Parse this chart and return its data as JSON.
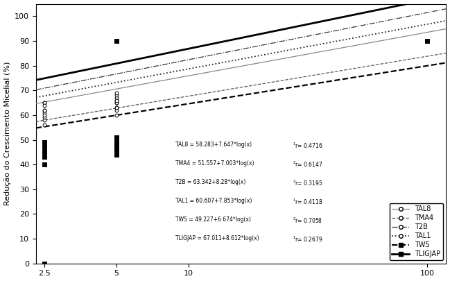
{
  "title": "",
  "ylabel": "Redução do Crescimento Micelial (%)",
  "xlabel": "",
  "xscale": "log",
  "xlim": [
    2.3,
    120
  ],
  "ylim": [
    0,
    105
  ],
  "yticks": [
    0,
    10,
    20,
    30,
    40,
    50,
    60,
    70,
    80,
    90,
    100
  ],
  "xticks": [
    2.5,
    5,
    10,
    100
  ],
  "xtick_labels": [
    "2.5",
    "5",
    "10",
    "100"
  ],
  "names": [
    "TAL8",
    "TMA4",
    "T2B",
    "TAL1",
    "TW5",
    "TLIGJAP"
  ],
  "params": [
    [
      58.283,
      7.647
    ],
    [
      51.557,
      7.003
    ],
    [
      63.342,
      8.28
    ],
    [
      60.607,
      7.853
    ],
    [
      49.227,
      6.674
    ],
    [
      67.011,
      8.612
    ]
  ],
  "curve_styles": [
    {
      "ls": "-",
      "lw": 0.9,
      "color": "#888888"
    },
    {
      "ls": "--",
      "lw": 0.9,
      "color": "#555555"
    },
    {
      "ls": "-.",
      "lw": 0.9,
      "color": "#333333"
    },
    {
      "ls": ":",
      "lw": 1.3,
      "color": "#222222"
    },
    {
      "ls": "--",
      "lw": 1.6,
      "color": "#000000"
    },
    {
      "ls": "-",
      "lw": 2.0,
      "color": "#000000"
    }
  ],
  "scatter": {
    "TAL8": {
      "x": [
        2.5,
        2.5,
        2.5,
        5,
        5,
        5
      ],
      "y": [
        58,
        61,
        65,
        62,
        65,
        67
      ],
      "marker": "o",
      "fc": "white",
      "ec": "black",
      "s": 12
    },
    "TMA4": {
      "x": [
        2.5,
        2.5,
        2.5,
        5,
        5,
        5
      ],
      "y": [
        56,
        59,
        62,
        60,
        63,
        66
      ],
      "marker": "o",
      "fc": "white",
      "ec": "black",
      "s": 12
    },
    "T2B": {
      "x": [
        2.5,
        2.5,
        5,
        5
      ],
      "y": [
        62,
        65,
        65,
        68
      ],
      "marker": "o",
      "fc": "white",
      "ec": "black",
      "s": 12
    },
    "TAL1": {
      "x": [
        2.5,
        2.5,
        5,
        5,
        5
      ],
      "y": [
        60,
        64,
        63,
        66,
        69
      ],
      "marker": "o",
      "fc": "white",
      "ec": "black",
      "s": 12
    },
    "TW5": {
      "x": [
        2.5,
        2.5,
        2.5,
        2.5,
        2.5,
        5,
        5,
        5,
        5,
        5,
        5
      ],
      "y": [
        40,
        43,
        45,
        47,
        49,
        44,
        46,
        47,
        48,
        49,
        51
      ],
      "marker": "s",
      "fc": "black",
      "ec": "black",
      "s": 14
    },
    "TLIGJAP": {
      "x": [
        2.5,
        5,
        100
      ],
      "y": [
        0,
        90,
        90
      ],
      "marker": "s",
      "fc": "black",
      "ec": "black",
      "s": 18
    }
  },
  "eq_lines": [
    "TAL8 = 58.283+7.647*log(x)",
    "TMA4 = 51.557+7.003*log(x)",
    "T2B = 63.342+8.28*log(x)",
    "TAL1 = 60.607+7.853*log(x)",
    "TW5 = 49.227+6.674*log(x)",
    "TLIGJAP = 67.011+8.612*log(x)"
  ],
  "eq_r": [
    "0.4716",
    "0.6147",
    "0.3195",
    "0.4118",
    "0.7058",
    "0.2679"
  ],
  "eq_rsup": [
    "1",
    "2",
    "2",
    "1",
    "2",
    "1"
  ],
  "background_color": "#ffffff"
}
